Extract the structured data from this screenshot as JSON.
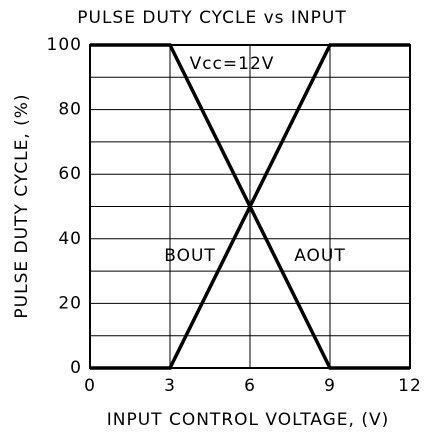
{
  "chart_data": {
    "type": "line",
    "title": "PULSE DUTY CYCLE vs INPUT",
    "x_label": "INPUT CONTROL VOLTAGE, (V)",
    "y_label": "PULSE DUTY CYCLE, (%)",
    "annotations": [
      "Vcc=12V"
    ],
    "x": [
      0,
      3,
      9,
      12
    ],
    "series": [
      {
        "name": "AOUT",
        "color": "#000000",
        "values": [
          0,
          0,
          100,
          100
        ]
      },
      {
        "name": "BOUT",
        "color": "#000000",
        "values": [
          100,
          100,
          0,
          0
        ]
      }
    ],
    "xlim": [
      0,
      12
    ],
    "xticks": [
      0,
      3,
      6,
      9,
      12
    ],
    "ylim": [
      0,
      100
    ],
    "yticks": [
      0,
      20,
      40,
      60,
      80,
      100
    ],
    "minor_yticks": [
      10,
      30,
      50,
      70,
      90
    ],
    "grid": true
  }
}
